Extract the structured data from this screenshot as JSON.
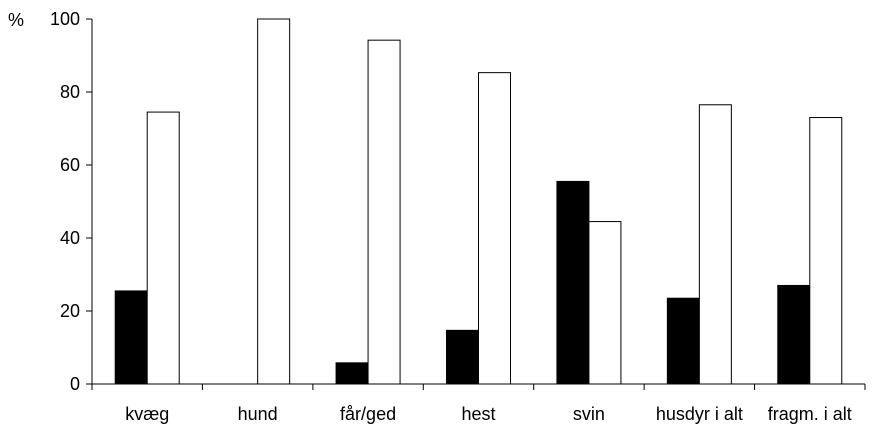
{
  "chart_data": {
    "type": "bar",
    "categories": [
      "kvæg",
      "hund",
      "får/ged",
      "hest",
      "svin",
      "husdyr i alt",
      "fragm. i alt"
    ],
    "series": [
      {
        "color": "#000000",
        "values": [
          25.5,
          0,
          5.8,
          14.7,
          55.5,
          23.5,
          27.0
        ]
      },
      {
        "color": "#ffffff",
        "values": [
          74.5,
          100,
          94.2,
          85.3,
          44.5,
          76.5,
          73.0
        ]
      }
    ],
    "yticks": [
      "0",
      "20",
      "40",
      "60",
      "80",
      "100"
    ],
    "ylim": [
      0,
      100
    ],
    "y_unit_label": "%",
    "grid": false,
    "legend": "none"
  }
}
